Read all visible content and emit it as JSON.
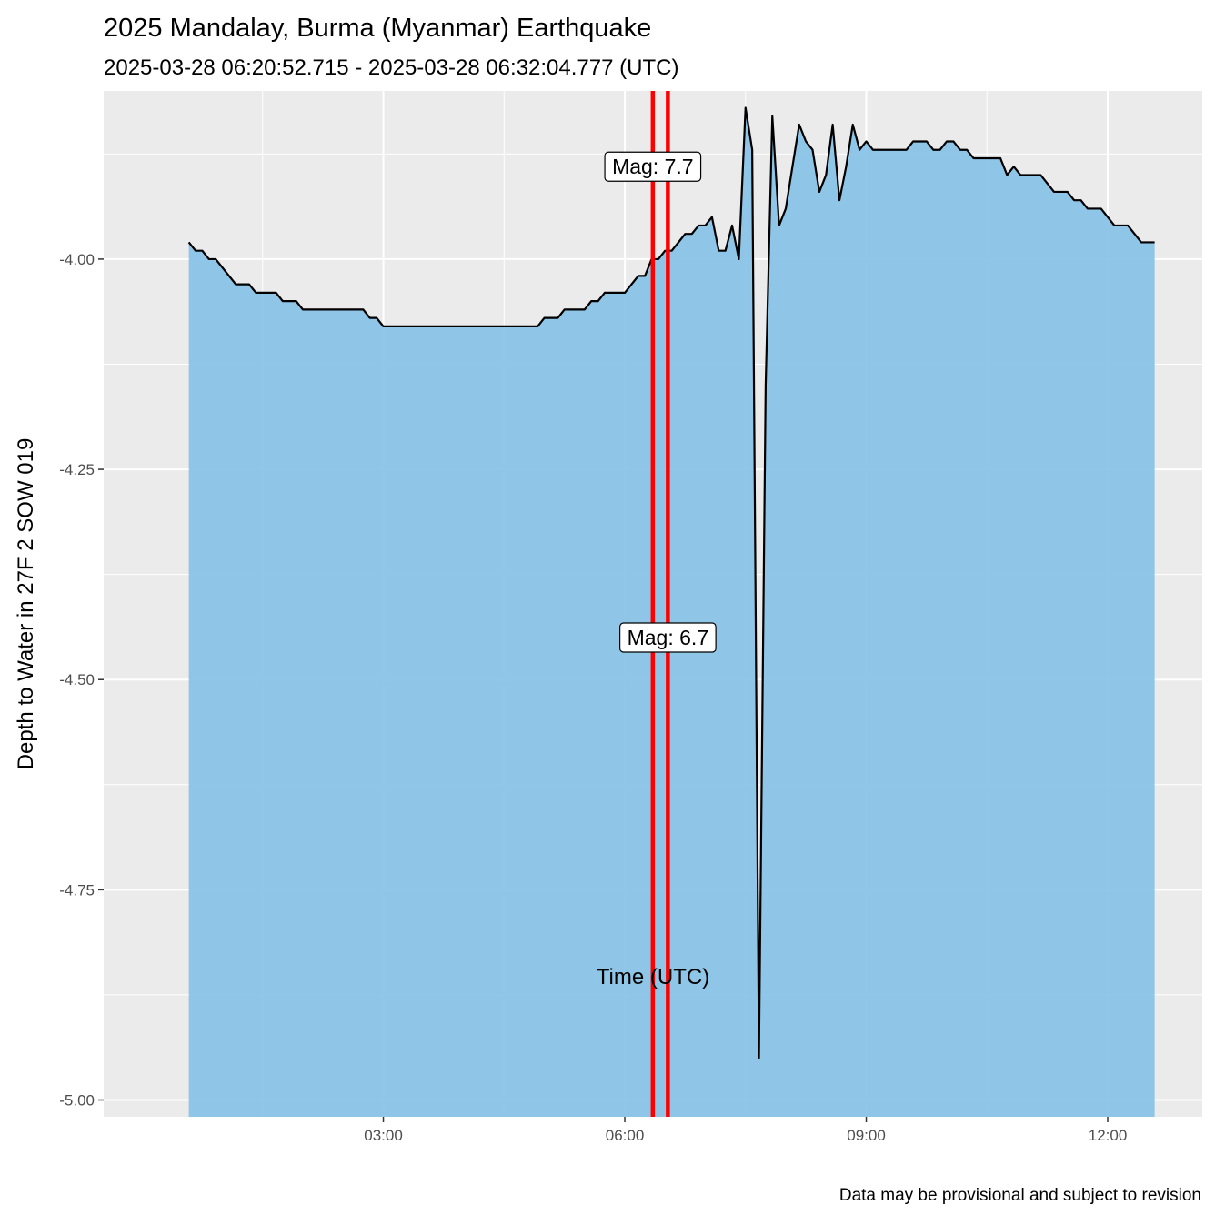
{
  "chart_data": {
    "type": "area",
    "title": "2025 Mandalay, Burma (Myanmar) Earthquake",
    "subtitle": "2025-03-28 06:20:52.715  -  2025-03-28 06:32:04.777 (UTC)",
    "xlabel": "Time (UTC)",
    "ylabel": "Depth to Water in 27F 2 SOW 019",
    "caption": "Data may be provisional and subject to revision",
    "x_unit": "hours UTC on 2025-03-28",
    "xlim": [
      -0.475,
      13.175
    ],
    "ylim": [
      -5.0,
      -3.8
    ],
    "x_ticks": [
      {
        "value": 3,
        "label": "03:00"
      },
      {
        "value": 6,
        "label": "06:00"
      },
      {
        "value": 9,
        "label": "09:00"
      },
      {
        "value": 12,
        "label": "12:00"
      }
    ],
    "y_ticks": [
      {
        "value": -4.0,
        "label": "-4.00"
      },
      {
        "value": -4.25,
        "label": "-4.25"
      },
      {
        "value": -4.5,
        "label": "-4.50"
      },
      {
        "value": -4.75,
        "label": "-4.75"
      },
      {
        "value": -5.0,
        "label": "-5.00"
      }
    ],
    "grid": true,
    "fill_color": "#87c1e6",
    "line_color": "#000000",
    "event_color": "#ff0000",
    "events": [
      {
        "x": 6.348,
        "label": "Mag: 7.7",
        "label_y": -3.89
      },
      {
        "x": 6.535,
        "label": "Mag: 6.7",
        "label_y": -4.45
      }
    ],
    "series": [
      {
        "points": [
          [
            0.583,
            -3.98
          ],
          [
            0.667,
            -3.99
          ],
          [
            0.75,
            -3.99
          ],
          [
            0.833,
            -4.0
          ],
          [
            0.917,
            -4.0
          ],
          [
            1.0,
            -4.01
          ],
          [
            1.083,
            -4.02
          ],
          [
            1.167,
            -4.03
          ],
          [
            1.333,
            -4.03
          ],
          [
            1.417,
            -4.04
          ],
          [
            1.667,
            -4.04
          ],
          [
            1.75,
            -4.05
          ],
          [
            1.917,
            -4.05
          ],
          [
            2.0,
            -4.06
          ],
          [
            2.083,
            -4.06
          ],
          [
            2.75,
            -4.06
          ],
          [
            2.833,
            -4.07
          ],
          [
            2.917,
            -4.07
          ],
          [
            3.0,
            -4.08
          ],
          [
            4.917,
            -4.08
          ],
          [
            5.0,
            -4.07
          ],
          [
            5.167,
            -4.07
          ],
          [
            5.25,
            -4.06
          ],
          [
            5.5,
            -4.06
          ],
          [
            5.583,
            -4.05
          ],
          [
            5.667,
            -4.05
          ],
          [
            5.75,
            -4.04
          ],
          [
            6.0,
            -4.04
          ],
          [
            6.083,
            -4.03
          ],
          [
            6.167,
            -4.02
          ],
          [
            6.25,
            -4.02
          ],
          [
            6.333,
            -4.0
          ],
          [
            6.417,
            -4.0
          ],
          [
            6.5,
            -3.99
          ],
          [
            6.583,
            -3.99
          ],
          [
            6.667,
            -3.98
          ],
          [
            6.75,
            -3.97
          ],
          [
            6.833,
            -3.97
          ],
          [
            6.917,
            -3.96
          ],
          [
            7.0,
            -3.96
          ],
          [
            7.083,
            -3.95
          ],
          [
            7.167,
            -3.99
          ],
          [
            7.25,
            -3.99
          ],
          [
            7.333,
            -3.96
          ],
          [
            7.417,
            -4.0
          ],
          [
            7.5,
            -3.82
          ],
          [
            7.583,
            -3.87
          ],
          [
            7.667,
            -4.95
          ],
          [
            7.75,
            -4.15
          ],
          [
            7.833,
            -3.83
          ],
          [
            7.917,
            -3.96
          ],
          [
            8.0,
            -3.94
          ],
          [
            8.083,
            -3.89
          ],
          [
            8.167,
            -3.84
          ],
          [
            8.25,
            -3.86
          ],
          [
            8.333,
            -3.87
          ],
          [
            8.417,
            -3.92
          ],
          [
            8.5,
            -3.9
          ],
          [
            8.583,
            -3.84
          ],
          [
            8.667,
            -3.93
          ],
          [
            8.75,
            -3.89
          ],
          [
            8.833,
            -3.84
          ],
          [
            8.917,
            -3.87
          ],
          [
            9.0,
            -3.86
          ],
          [
            9.083,
            -3.87
          ],
          [
            9.167,
            -3.87
          ],
          [
            9.5,
            -3.87
          ],
          [
            9.583,
            -3.86
          ],
          [
            9.75,
            -3.86
          ],
          [
            9.833,
            -3.87
          ],
          [
            9.917,
            -3.87
          ],
          [
            10.0,
            -3.86
          ],
          [
            10.083,
            -3.86
          ],
          [
            10.167,
            -3.87
          ],
          [
            10.25,
            -3.87
          ],
          [
            10.333,
            -3.88
          ],
          [
            10.667,
            -3.88
          ],
          [
            10.75,
            -3.9
          ],
          [
            10.833,
            -3.89
          ],
          [
            10.917,
            -3.9
          ],
          [
            11.167,
            -3.9
          ],
          [
            11.333,
            -3.92
          ],
          [
            11.5,
            -3.92
          ],
          [
            11.583,
            -3.93
          ],
          [
            11.667,
            -3.93
          ],
          [
            11.75,
            -3.94
          ],
          [
            11.917,
            -3.94
          ],
          [
            12.083,
            -3.96
          ],
          [
            12.25,
            -3.96
          ],
          [
            12.417,
            -3.98
          ],
          [
            12.583,
            -3.98
          ]
        ]
      }
    ]
  }
}
